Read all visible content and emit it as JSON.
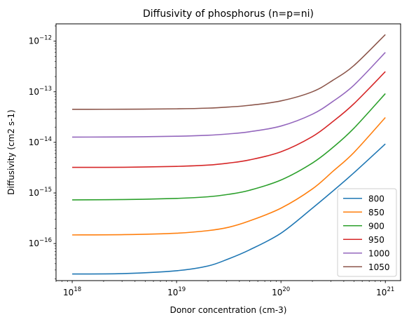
{
  "chart_data": {
    "type": "line",
    "title": "Diffusivity of phosphorus (n=p=ni)",
    "xlabel": "Donor concentration (cm-3)",
    "ylabel": "Diffusivity (cm2 s-1)",
    "xscale": "log",
    "yscale": "log",
    "xlim": [
      7e+17,
      1.4e+21
    ],
    "ylim": [
      1.85e-17,
      2.2e-12
    ],
    "xticks": [
      {
        "value": 1e+18,
        "base": "10",
        "exp": "18"
      },
      {
        "value": 1e+19,
        "base": "10",
        "exp": "19"
      },
      {
        "value": 1e+20,
        "base": "10",
        "exp": "20"
      },
      {
        "value": 1e+21,
        "base": "10",
        "exp": "21"
      }
    ],
    "yticks": [
      {
        "value": 1e-16,
        "base": "10",
        "exp": "−16"
      },
      {
        "value": 1e-15,
        "base": "10",
        "exp": "−15"
      },
      {
        "value": 1e-14,
        "base": "10",
        "exp": "−14"
      },
      {
        "value": 1e-13,
        "base": "10",
        "exp": "−13"
      },
      {
        "value": 1e-12,
        "base": "10",
        "exp": "−12"
      }
    ],
    "legend_position": "lower right",
    "grid": false,
    "x": [
      1e+18,
      3.16e+18,
      1e+19,
      2e+19,
      3.16e+19,
      5e+19,
      1e+20,
      2e+20,
      3.16e+20,
      5e+20,
      1e+21
    ],
    "series": [
      {
        "name": "800",
        "color": "#1f77b4",
        "values": [
          2.5e-17,
          2.55e-17,
          2.9e-17,
          3.6e-17,
          5e-17,
          7.5e-17,
          1.6e-16,
          5e-16,
          1.1e-15,
          2.5e-15,
          9.3e-15
        ]
      },
      {
        "name": "850",
        "color": "#ff7f0e",
        "values": [
          1.48e-16,
          1.5e-16,
          1.6e-16,
          1.8e-16,
          2.1e-16,
          2.8e-16,
          5e-16,
          1.2e-15,
          2.7e-15,
          6.3e-15,
          3.1e-14
        ]
      },
      {
        "name": "900",
        "color": "#2ca02c",
        "values": [
          7.3e-16,
          7.4e-16,
          7.8e-16,
          8.4e-16,
          9.4e-16,
          1.13e-15,
          1.8e-15,
          3.9e-15,
          8e-15,
          1.9e-14,
          9.2e-14
        ]
      },
      {
        "name": "950",
        "color": "#d62728",
        "values": [
          3.2e-15,
          3.22e-15,
          3.35e-15,
          3.55e-15,
          3.9e-15,
          4.5e-15,
          6.5e-15,
          1.3e-14,
          2.6e-14,
          5.8e-14,
          2.5e-13
        ]
      },
      {
        "name": "1000",
        "color": "#9467bd",
        "values": [
          1.27e-14,
          1.28e-14,
          1.32e-14,
          1.38e-14,
          1.47e-14,
          1.62e-14,
          2.1e-14,
          3.6e-14,
          6.5e-14,
          1.35e-13,
          6e-13
        ]
      },
      {
        "name": "1050",
        "color": "#8c564b",
        "values": [
          4.5e-14,
          4.52e-14,
          4.6e-14,
          4.75e-14,
          5e-14,
          5.4e-14,
          6.6e-14,
          1e-13,
          1.7e-13,
          3.3e-13,
          1.35e-12
        ]
      }
    ]
  }
}
